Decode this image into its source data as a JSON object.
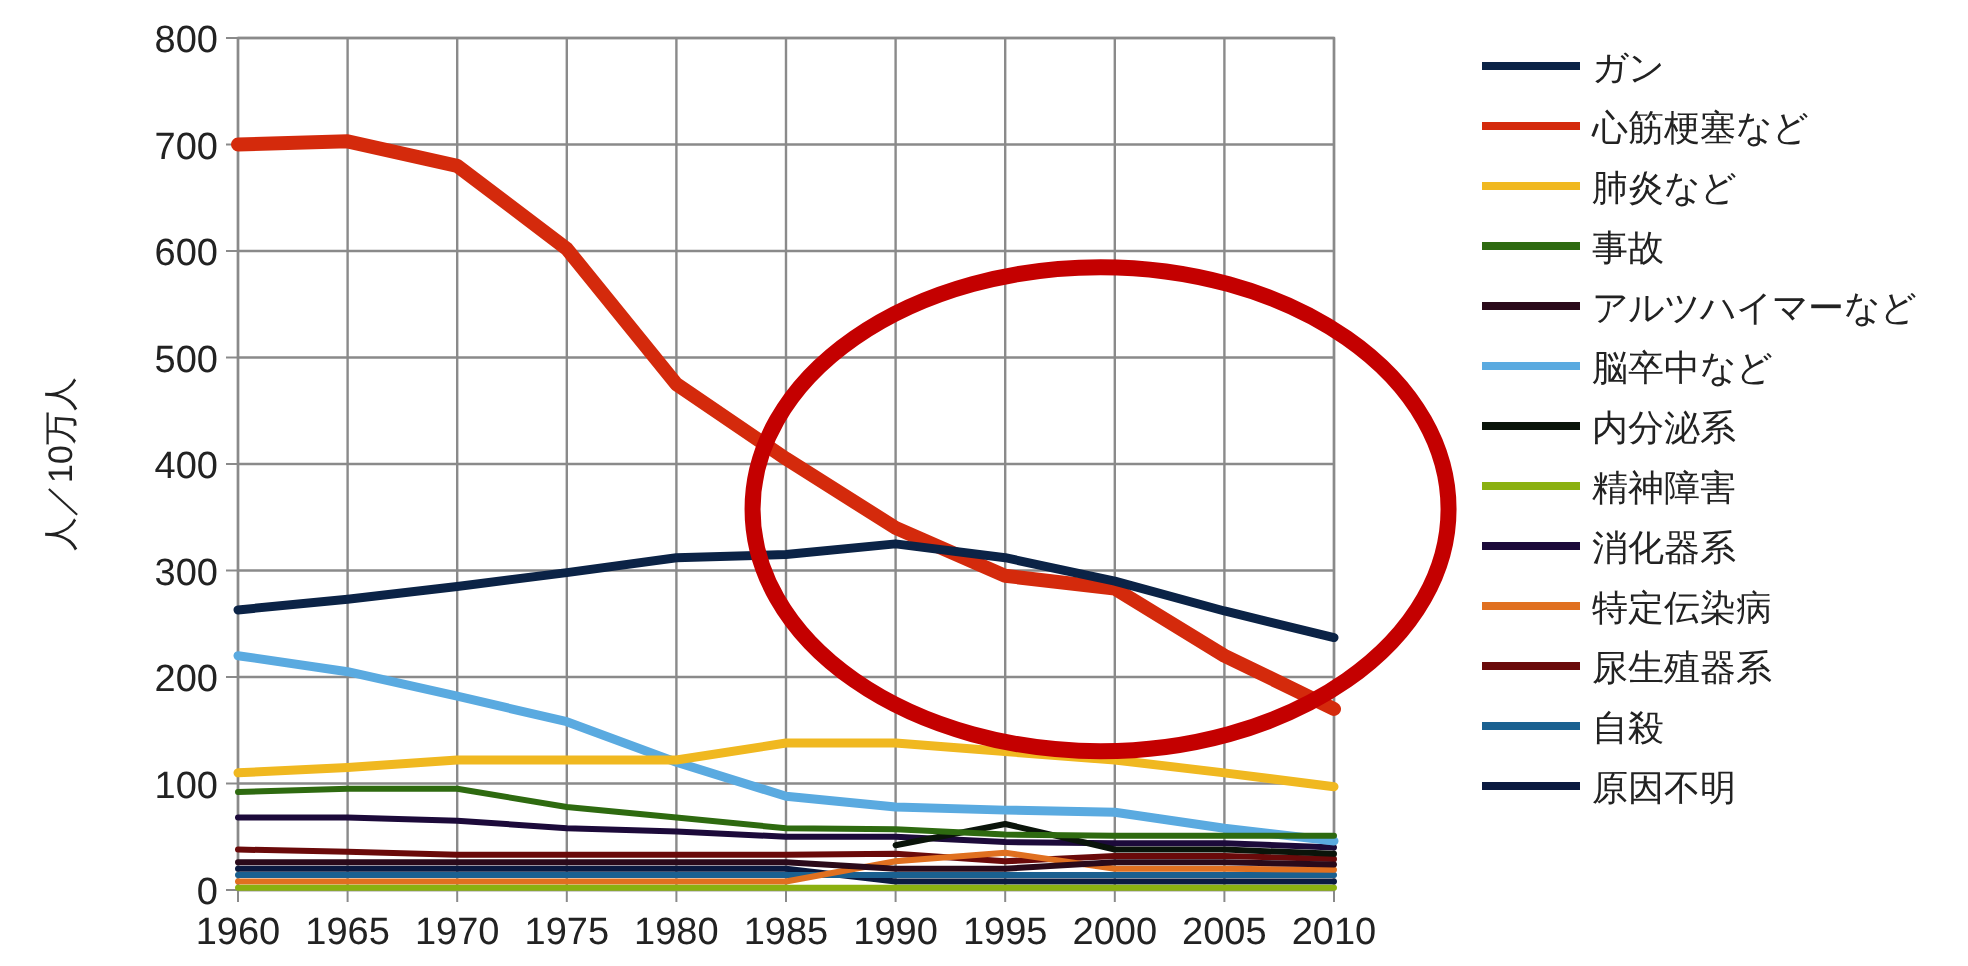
{
  "chart_data": {
    "type": "line",
    "ylabel": "人／10万人",
    "x": [
      1960,
      1965,
      1970,
      1975,
      1980,
      1985,
      1990,
      1995,
      2000,
      2005,
      2010
    ],
    "xlim": [
      1960,
      2010
    ],
    "ylim": [
      0,
      800
    ],
    "xticks": [
      1960,
      1965,
      1970,
      1975,
      1980,
      1985,
      1990,
      1995,
      2000,
      2005,
      2010
    ],
    "yticks": [
      0,
      100,
      200,
      300,
      400,
      500,
      600,
      700,
      800
    ],
    "grid": true,
    "legend": "right",
    "series": [
      {
        "name": "ガン",
        "color": "#0b2346",
        "values": [
          263,
          273,
          285,
          298,
          312,
          315,
          325,
          312,
          290,
          262,
          237
        ]
      },
      {
        "name": "心筋梗塞など",
        "color": "#d42a0c",
        "values": [
          700,
          703,
          680,
          602,
          475,
          405,
          340,
          295,
          283,
          220,
          170
        ]
      },
      {
        "name": "肺炎など",
        "color": "#f0b820",
        "values": [
          110,
          115,
          122,
          122,
          122,
          138,
          138,
          130,
          122,
          110,
          97
        ]
      },
      {
        "name": "事故",
        "color": "#2e6a10",
        "values": [
          92,
          95,
          95,
          78,
          68,
          58,
          57,
          52,
          51,
          51,
          51
        ]
      },
      {
        "name": "アルツハイマーなど",
        "color": "#2a0a1a",
        "values": [
          26,
          26,
          26,
          26,
          26,
          26,
          20,
          20,
          26,
          26,
          24
        ]
      },
      {
        "name": "脳卒中など",
        "color": "#5aaae0",
        "values": [
          220,
          205,
          182,
          158,
          120,
          88,
          78,
          75,
          73,
          58,
          46
        ]
      },
      {
        "name": "内分泌系",
        "color": "#0a140a",
        "values": [
          null,
          null,
          null,
          null,
          null,
          null,
          42,
          62,
          38,
          38,
          34
        ]
      },
      {
        "name": "精神障害",
        "color": "#8ab010",
        "values": [
          2,
          2,
          2,
          2,
          2,
          2,
          2,
          2,
          2,
          2,
          2
        ]
      },
      {
        "name": "消化器系",
        "color": "#1c0a3a",
        "values": [
          68,
          68,
          65,
          58,
          55,
          50,
          50,
          45,
          44,
          44,
          40
        ]
      },
      {
        "name": "特定伝染病",
        "color": "#e07020",
        "values": [
          8,
          8,
          8,
          8,
          8,
          8,
          27,
          35,
          20,
          20,
          19
        ]
      },
      {
        "name": "尿生殖器系",
        "color": "#6a0a0a",
        "values": [
          38,
          36,
          33,
          33,
          33,
          33,
          34,
          27,
          32,
          32,
          29
        ]
      },
      {
        "name": "自殺",
        "color": "#1a6090",
        "values": [
          14,
          14,
          14,
          14,
          14,
          14,
          14,
          14,
          14,
          14,
          14
        ]
      },
      {
        "name": "原因不明",
        "color": "#0a1a40",
        "values": [
          20,
          20,
          20,
          20,
          20,
          20,
          8,
          8,
          8,
          8,
          8
        ]
      }
    ]
  }
}
